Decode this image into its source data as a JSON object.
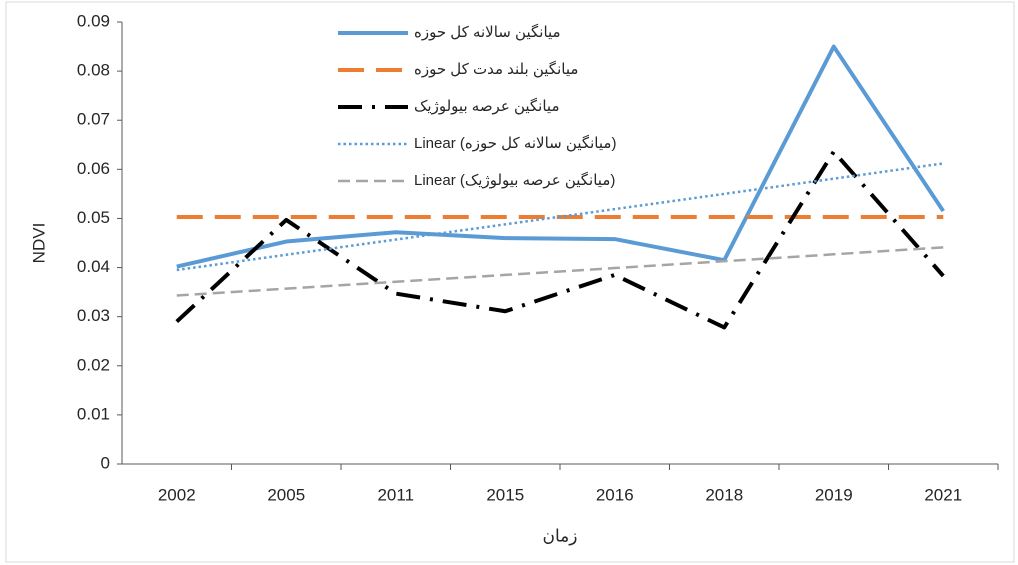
{
  "chart_data": {
    "type": "line",
    "x_label": "زمان",
    "y_label": "NDVI",
    "categories": [
      "2002",
      "2005",
      "2011",
      "2015",
      "2016",
      "2018",
      "2019",
      "2021"
    ],
    "ylim": [
      0,
      0.09
    ],
    "yticks": [
      0,
      0.01,
      0.02,
      0.03,
      0.04,
      0.05,
      0.06,
      0.07,
      0.08,
      0.09
    ],
    "grid": false,
    "series": [
      {
        "name": "میانگین سالانه کل حوزه",
        "color": "#5b9bd5",
        "style": "solid",
        "values": [
          0.0402,
          0.0453,
          0.0472,
          0.046,
          0.0458,
          0.0415,
          0.085,
          0.0515
        ]
      },
      {
        "name": "میانگین بلند مدت کل حوزه",
        "color": "#ed7d31",
        "style": "dashed",
        "values": [
          0.0503,
          0.0503,
          0.0503,
          0.0503,
          0.0503,
          0.0503,
          0.0503,
          0.0503
        ]
      },
      {
        "name": "میانگین عرصه بیولوژیک",
        "color": "#000000",
        "style": "dashdot",
        "values": [
          0.029,
          0.0497,
          0.0347,
          0.0311,
          0.0385,
          0.0278,
          0.0636,
          0.0383
        ]
      },
      {
        "name": "Linear (میانگین سالانه کل حوزه)",
        "color": "#5b9bd5",
        "style": "dotted",
        "values": [
          0.0395,
          0.0426,
          0.0457,
          0.0488,
          0.0519,
          0.055,
          0.0581,
          0.0612
        ]
      },
      {
        "name": "Linear (میانگین عرصه بیولوژیک)",
        "color": "#a5a5a5",
        "style": "trenddash",
        "values": [
          0.0343,
          0.0357,
          0.0371,
          0.0385,
          0.0399,
          0.0413,
          0.0427,
          0.0441
        ]
      }
    ]
  }
}
